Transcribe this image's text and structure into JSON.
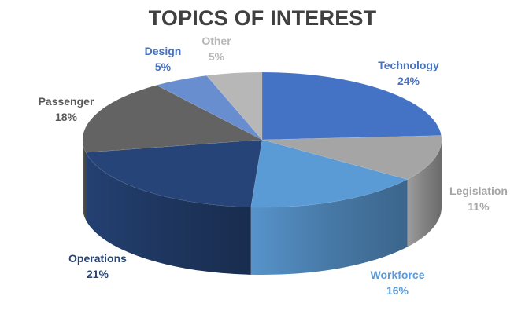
{
  "chart_data": {
    "type": "pie",
    "title": "TOPICS OF INTEREST",
    "categories": [
      "Technology",
      "Legislation",
      "Workforce",
      "Operations",
      "Passenger",
      "Design",
      "Other"
    ],
    "values": [
      24,
      11,
      16,
      21,
      18,
      5,
      5
    ],
    "value_labels": [
      "24%",
      "11%",
      "16%",
      "21%",
      "18%",
      "5%",
      "5%"
    ],
    "colors": [
      "#4472C4",
      "#A5A5A5",
      "#5B9BD5",
      "#264478",
      "#636363",
      "#698ED0",
      "#B7B7B7"
    ],
    "label_colors": [
      "#4472C4",
      "#A5A5A5",
      "#5B9BD5",
      "#264478",
      "#595959",
      "#4472C4",
      "#B7B7B7"
    ],
    "style": "3d",
    "legend": "none"
  }
}
